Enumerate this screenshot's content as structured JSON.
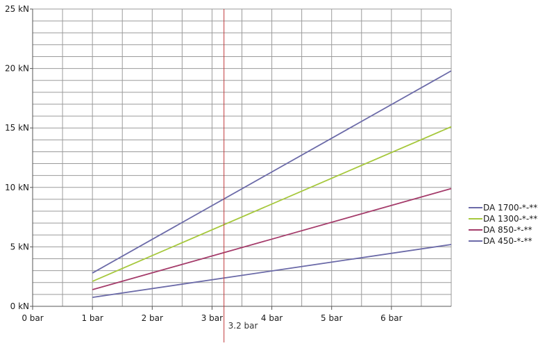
{
  "chart_data": {
    "type": "line",
    "x_ticks": [
      {
        "value": 0,
        "label": "0 bar"
      },
      {
        "value": 1,
        "label": "1 bar"
      },
      {
        "value": 2,
        "label": "2 bar"
      },
      {
        "value": 3,
        "label": "3 bar"
      },
      {
        "value": 4,
        "label": "4 bar"
      },
      {
        "value": 5,
        "label": "5 bar"
      },
      {
        "value": 6,
        "label": "6 bar"
      }
    ],
    "y_ticks": [
      {
        "value": 0,
        "label": "0 kN"
      },
      {
        "value": 5,
        "label": "5 kN"
      },
      {
        "value": 10,
        "label": "10 kN"
      },
      {
        "value": 15,
        "label": "15 kN"
      },
      {
        "value": 20,
        "label": "20 kN"
      },
      {
        "value": 25,
        "label": "25 kN"
      }
    ],
    "xlim": [
      0,
      7
    ],
    "ylim": [
      0,
      25
    ],
    "grid": true,
    "x_minor_step": 0.5,
    "y_minor_step": 1,
    "legend_position": "right",
    "series": [
      {
        "name": "DA 1700-*-**",
        "color": "#6b6aa8",
        "points": [
          [
            1,
            2.8
          ],
          [
            7,
            19.8
          ]
        ]
      },
      {
        "name": "DA 1300-*-**",
        "color": "#a6c83c",
        "points": [
          [
            1,
            2.1
          ],
          [
            7,
            15.1
          ]
        ]
      },
      {
        "name": "DA 850-*-**",
        "color": "#a43b6a",
        "points": [
          [
            1,
            1.4
          ],
          [
            7,
            9.9
          ]
        ]
      },
      {
        "name": "DA 450-*-**",
        "color": "#6b6aa8",
        "points": [
          [
            1,
            0.75
          ],
          [
            7,
            5.2
          ]
        ]
      }
    ],
    "marker": {
      "x": 3.2,
      "label": "3.2 bar",
      "color": "#c0393b"
    }
  }
}
